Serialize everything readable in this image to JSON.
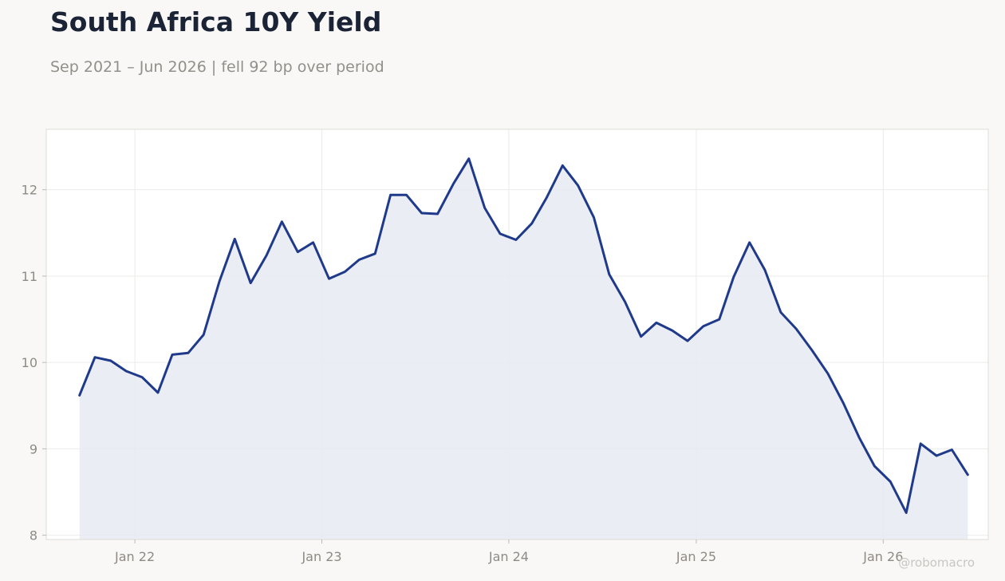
{
  "header": {
    "title": "South Africa 10Y Yield",
    "subtitle": "Sep 2021 – Jun 2026 | fell 92 bp over period"
  },
  "watermark": "@robomacro",
  "colors": {
    "line": "#1f3a8a",
    "fill": "#e8eaf3",
    "plot_bg": "#ffffff",
    "page_bg": "#f9f8f6",
    "grid": "#ecebea"
  },
  "chart_data": {
    "type": "area",
    "x_ticks": [
      "Jan 22",
      "Jan 23",
      "Jan 24",
      "Jan 25",
      "Jan 26"
    ],
    "y_ticks": [
      8,
      9,
      10,
      11,
      12
    ],
    "ylim": [
      7.95,
      12.7
    ],
    "xlim": [
      "2021-07-12",
      "2026-07-25"
    ],
    "grid": true,
    "series": [
      {
        "dates": [
          "2021-09",
          "2021-10",
          "2021-11",
          "2021-12",
          "2022-01",
          "2022-02",
          "2022-03",
          "2022-04",
          "2022-05",
          "2022-06",
          "2022-07",
          "2022-08",
          "2022-09",
          "2022-10",
          "2022-11",
          "2022-12",
          "2023-01",
          "2023-02",
          "2023-03",
          "2023-04",
          "2023-05",
          "2023-06",
          "2023-07",
          "2023-08",
          "2023-09",
          "2023-10",
          "2023-11",
          "2023-12",
          "2024-01",
          "2024-02",
          "2024-03",
          "2024-04",
          "2024-05",
          "2024-06",
          "2024-07",
          "2024-08",
          "2024-09",
          "2024-10",
          "2024-11",
          "2024-12",
          "2025-01",
          "2025-02",
          "2025-03",
          "2025-04",
          "2025-05",
          "2025-06",
          "2025-07",
          "2025-08",
          "2025-09",
          "2025-10",
          "2025-11",
          "2025-12",
          "2026-01",
          "2026-02",
          "2026-03",
          "2026-04",
          "2026-05",
          "2026-06"
        ],
        "values": [
          9.62,
          10.06,
          10.02,
          9.9,
          9.83,
          9.65,
          10.09,
          10.11,
          10.32,
          10.94,
          11.43,
          10.92,
          11.24,
          11.63,
          11.28,
          11.39,
          10.97,
          11.05,
          11.19,
          11.26,
          11.94,
          11.94,
          11.73,
          11.72,
          12.07,
          12.36,
          11.79,
          11.49,
          11.42,
          11.61,
          11.91,
          12.28,
          12.05,
          11.68,
          11.02,
          10.7,
          10.3,
          10.46,
          10.37,
          10.25,
          10.42,
          10.5,
          10.99,
          11.39,
          11.07,
          10.58,
          10.39,
          10.14,
          9.87,
          9.53,
          9.13,
          8.8,
          8.62,
          8.26,
          9.06,
          8.92,
          8.99,
          8.7
        ]
      }
    ]
  }
}
